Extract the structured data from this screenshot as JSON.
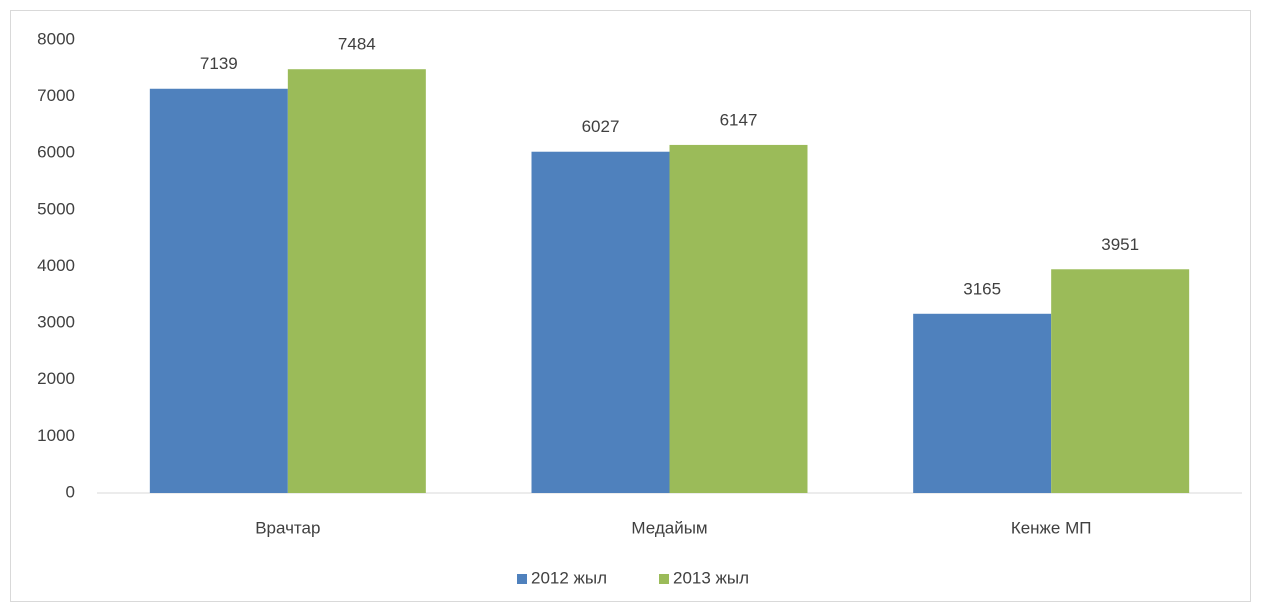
{
  "chart_data": {
    "type": "bar",
    "categories": [
      "Врачтар",
      "Медайым",
      "Кенже МП"
    ],
    "series": [
      {
        "name": "2012 жыл",
        "color": "#4f81bd",
        "values": [
          7139,
          6027,
          3165
        ]
      },
      {
        "name": "2013 жыл",
        "color": "#9bbb59",
        "values": [
          7484,
          6147,
          3951
        ]
      }
    ],
    "ylim": [
      0,
      8000
    ],
    "yticks": [
      0,
      1000,
      2000,
      3000,
      4000,
      5000,
      6000,
      7000,
      8000
    ],
    "grid": false,
    "legend": "bottom"
  }
}
